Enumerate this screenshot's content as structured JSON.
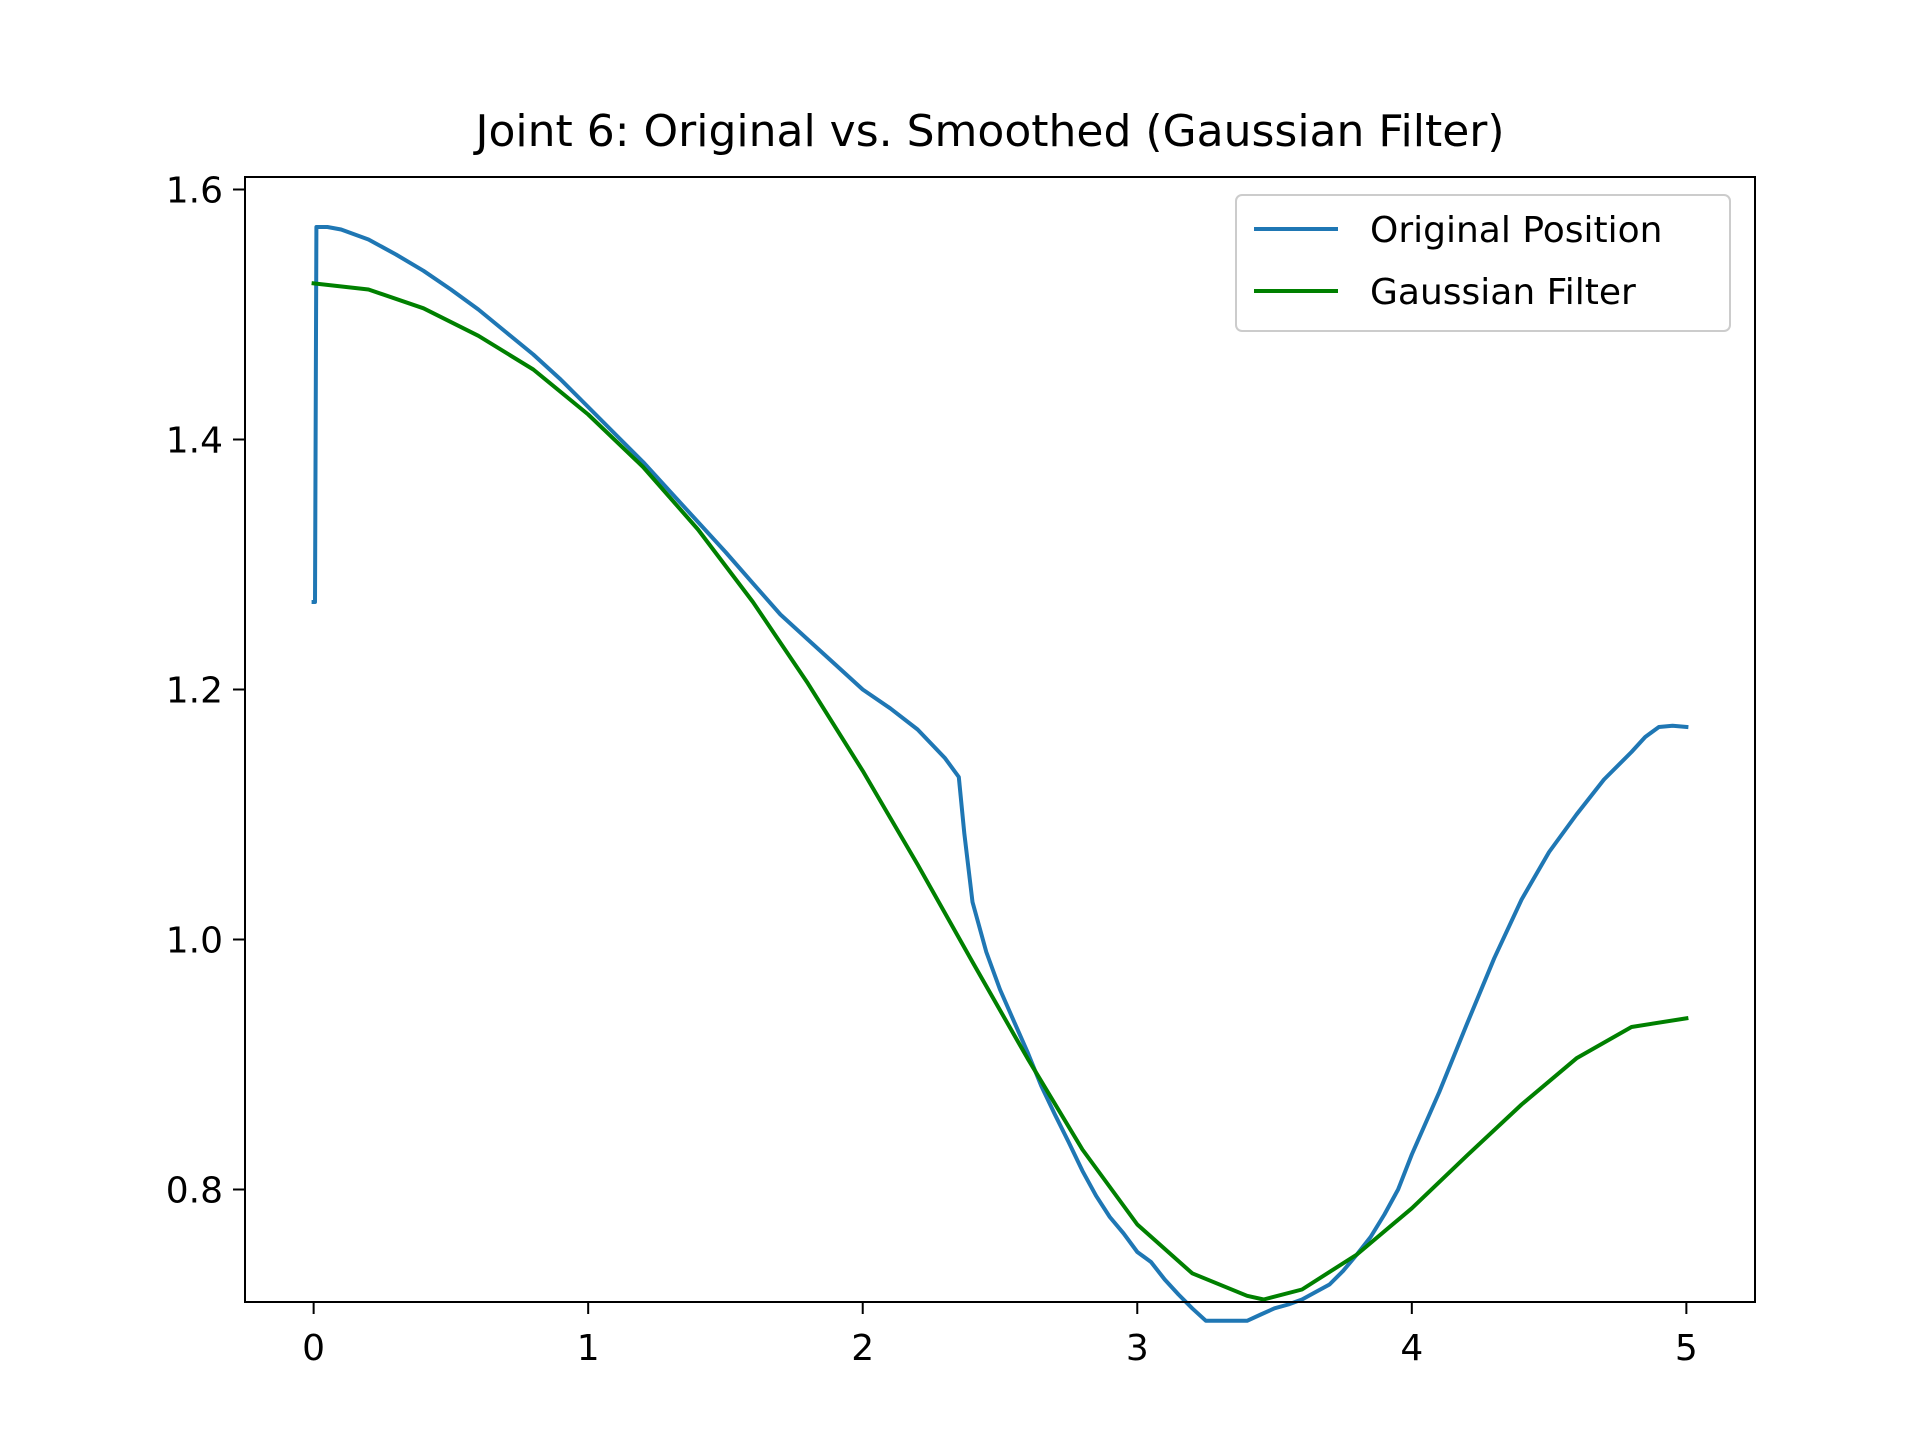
{
  "chart_data": {
    "type": "line",
    "title": "Joint 6: Original vs. Smoothed (Gaussian Filter)",
    "xlabel": "",
    "ylabel": "",
    "xlim": [
      -0.25,
      5.25
    ],
    "ylim": [
      0.71,
      1.61
    ],
    "xticks": [
      0,
      1,
      2,
      3,
      4,
      5
    ],
    "xtick_labels": [
      "0",
      "1",
      "2",
      "3",
      "4",
      "5"
    ],
    "yticks": [
      0.8,
      1.0,
      1.2,
      1.4,
      1.6
    ],
    "ytick_labels": [
      "0.8",
      "1.0",
      "1.2",
      "1.4",
      "1.6"
    ],
    "grid": false,
    "legend_position": "top-right",
    "series": [
      {
        "name": "Original Position",
        "color": "#1f77b4",
        "x": [
          0,
          0.005,
          0.01,
          0.05,
          0.1,
          0.2,
          0.3,
          0.4,
          0.5,
          0.6,
          0.7,
          0.8,
          0.9,
          1.0,
          1.1,
          1.2,
          1.3,
          1.4,
          1.5,
          1.6,
          1.7,
          1.8,
          1.9,
          2.0,
          2.1,
          2.2,
          2.3,
          2.35,
          2.37,
          2.4,
          2.45,
          2.5,
          2.55,
          2.6,
          2.65,
          2.7,
          2.75,
          2.8,
          2.85,
          2.9,
          2.95,
          3.0,
          3.05,
          3.1,
          3.15,
          3.2,
          3.25,
          3.3,
          3.35,
          3.4,
          3.45,
          3.5,
          3.55,
          3.6,
          3.65,
          3.7,
          3.75,
          3.8,
          3.85,
          3.9,
          3.95,
          4.0,
          4.1,
          4.2,
          4.3,
          4.4,
          4.5,
          4.6,
          4.7,
          4.8,
          4.85,
          4.9,
          4.95,
          5.0
        ],
        "y": [
          1.27,
          1.27,
          1.57,
          1.57,
          1.568,
          1.56,
          1.548,
          1.535,
          1.52,
          1.504,
          1.486,
          1.468,
          1.448,
          1.426,
          1.404,
          1.382,
          1.358,
          1.334,
          1.31,
          1.285,
          1.26,
          1.24,
          1.22,
          1.2,
          1.185,
          1.168,
          1.145,
          1.13,
          1.085,
          1.03,
          0.99,
          0.96,
          0.935,
          0.91,
          0.883,
          0.86,
          0.838,
          0.815,
          0.795,
          0.778,
          0.765,
          0.75,
          0.742,
          0.728,
          0.716,
          0.705,
          0.695,
          0.695,
          0.695,
          0.695,
          0.7,
          0.705,
          0.708,
          0.712,
          0.718,
          0.724,
          0.735,
          0.748,
          0.762,
          0.78,
          0.8,
          0.828,
          0.878,
          0.932,
          0.985,
          1.032,
          1.07,
          1.1,
          1.128,
          1.15,
          1.162,
          1.17,
          1.171,
          1.17
        ]
      },
      {
        "name": "Gaussian Filter",
        "color": "#008000",
        "x": [
          0,
          0.2,
          0.4,
          0.6,
          0.8,
          1.0,
          1.2,
          1.4,
          1.6,
          1.8,
          2.0,
          2.2,
          2.4,
          2.6,
          2.8,
          3.0,
          3.2,
          3.4,
          3.46,
          3.6,
          3.8,
          4.0,
          4.2,
          4.4,
          4.6,
          4.8,
          5.0
        ],
        "y": [
          1.525,
          1.52,
          1.505,
          1.483,
          1.456,
          1.42,
          1.378,
          1.328,
          1.27,
          1.205,
          1.135,
          1.06,
          0.982,
          0.905,
          0.832,
          0.772,
          0.733,
          0.715,
          0.712,
          0.72,
          0.748,
          0.785,
          0.827,
          0.868,
          0.905,
          0.93,
          0.937
        ]
      }
    ]
  }
}
